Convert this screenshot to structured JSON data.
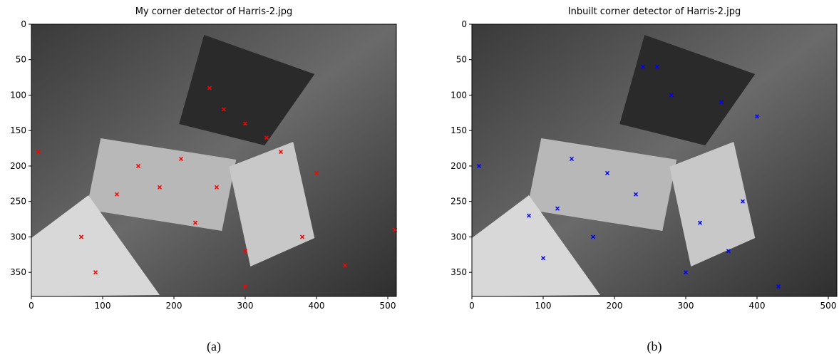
{
  "chart_data": [
    {
      "type": "scatter",
      "title": "My corner detector of Harris-2.jpg",
      "color": "#ff0000",
      "xlim": [
        0,
        512
      ],
      "ylim": [
        384,
        0
      ],
      "xticks": [
        0,
        100,
        200,
        300,
        400,
        500
      ],
      "yticks": [
        0,
        50,
        100,
        150,
        200,
        250,
        300,
        350
      ],
      "x": [
        250,
        270,
        300,
        330,
        150,
        180,
        120,
        230,
        300,
        380,
        400,
        70,
        90,
        300,
        440,
        510,
        10,
        210,
        260,
        350
      ],
      "y": [
        90,
        120,
        140,
        160,
        200,
        230,
        240,
        280,
        320,
        300,
        210,
        300,
        350,
        370,
        340,
        290,
        180,
        190,
        230,
        180
      ]
    },
    {
      "type": "scatter",
      "title": "Inbuilt corner detector of Harris-2.jpg",
      "color": "#0000ff",
      "xlim": [
        0,
        512
      ],
      "ylim": [
        384,
        0
      ],
      "xticks": [
        0,
        100,
        200,
        300,
        400,
        500
      ],
      "yticks": [
        0,
        50,
        100,
        150,
        200,
        250,
        300,
        350
      ],
      "x": [
        240,
        280,
        350,
        400,
        140,
        190,
        120,
        230,
        320,
        360,
        80,
        100,
        10,
        430,
        300,
        260,
        170,
        380
      ],
      "y": [
        60,
        100,
        110,
        130,
        190,
        210,
        260,
        240,
        280,
        320,
        270,
        330,
        200,
        370,
        350,
        60,
        300,
        250
      ]
    }
  ],
  "captions": [
    "(a)",
    "(b)"
  ]
}
